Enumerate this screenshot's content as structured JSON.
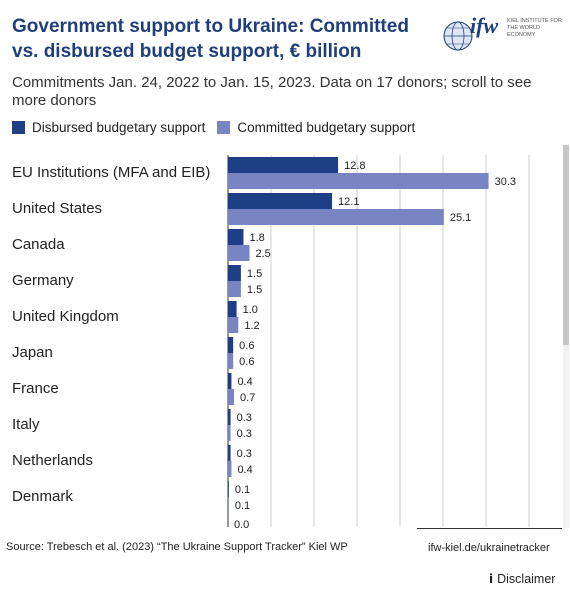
{
  "header": {
    "title": "Government support to Ukraine: Committed vs. disbursed budget support, € billion",
    "subtitle": "Commitments Jan. 24, 2022 to Jan. 15, 2023. Data on 17 donors; scroll to see more donors",
    "logo_text": "ifw",
    "logo_subtitle": "KIEL INSTITUTE FOR THE WORLD ECONOMY"
  },
  "legend": {
    "items": [
      {
        "label": "Disbursed budgetary support",
        "color": "#1e3f86"
      },
      {
        "label": "Committed budgetary support",
        "color": "#7985c2"
      }
    ]
  },
  "chart_data": {
    "type": "bar",
    "orientation": "horizontal",
    "categories": [
      "EU Institutions (MFA and EIB)",
      "United States",
      "Canada",
      "Germany",
      "United Kingdom",
      "Japan",
      "France",
      "Italy",
      "Netherlands",
      "Denmark"
    ],
    "series": [
      {
        "name": "Disbursed budgetary support",
        "color": "#1e3f86",
        "values": [
          12.8,
          12.1,
          1.8,
          1.5,
          1.0,
          0.6,
          0.4,
          0.3,
          0.3,
          0.1
        ]
      },
      {
        "name": "Committed budgetary support",
        "color": "#7985c2",
        "values": [
          30.3,
          25.1,
          2.5,
          1.5,
          1.2,
          0.6,
          0.7,
          0.3,
          0.4,
          0.1
        ]
      }
    ],
    "value_labels": [
      [
        "12.8",
        "12.1",
        "1.8",
        "1.5",
        "1.0",
        "0.6",
        "0.4",
        "0.3",
        "0.3",
        "0.1"
      ],
      [
        "30.3",
        "25.1",
        "2.5",
        "1.5",
        "1.2",
        "0.6",
        "0.7",
        "0.3",
        "0.4",
        "0.1"
      ]
    ],
    "partial_label": "0.0",
    "xlim": [
      0,
      40
    ],
    "grid": true,
    "legend_position": "top-left"
  },
  "footer": {
    "source": "Source: Trebesch et al. (2023) “The Ukraine Support Tracker” Kiel WP",
    "url": "ifw-kiel.de/ukrainetracker",
    "disclaimer": "Disclaimer",
    "info_icon": "info-icon"
  }
}
